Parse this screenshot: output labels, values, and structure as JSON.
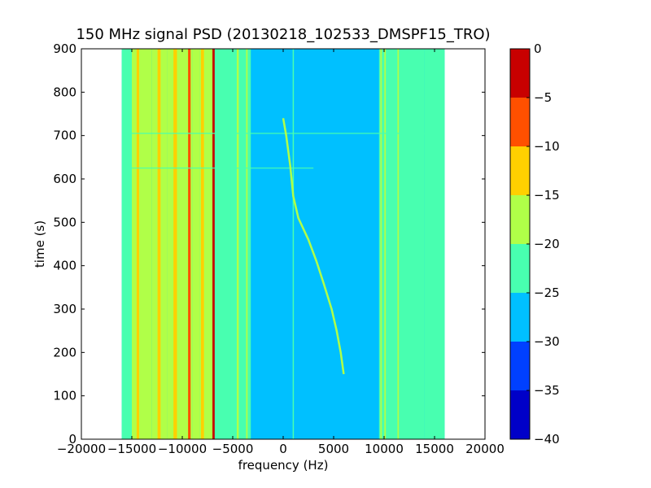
{
  "chart_data": {
    "type": "heatmap",
    "title": "150 MHz signal PSD (20130218_102533_DMSPF15_TRO)",
    "xlabel": "frequency (Hz)",
    "ylabel": "time (s)",
    "xlim": [
      -20000,
      20000
    ],
    "ylim": [
      0,
      900
    ],
    "xticks": [
      -20000,
      -15000,
      -10000,
      -5000,
      0,
      5000,
      10000,
      15000,
      20000
    ],
    "yticks": [
      0,
      100,
      200,
      300,
      400,
      500,
      600,
      700,
      800,
      900
    ],
    "data_extent_x": [
      -16000,
      16000
    ],
    "data_extent_y": [
      0,
      900
    ],
    "background_level": -27,
    "colorbar": {
      "levels": [
        -40,
        -35,
        -30,
        -25,
        -20,
        -15,
        -10,
        -5,
        0
      ],
      "tick_labels": [
        "-40",
        "-35",
        "-30",
        "-25",
        "-20",
        "-15",
        "-10",
        "-5",
        "0"
      ],
      "colors": [
        "#0000c8",
        "#0040ff",
        "#00c0ff",
        "#48ffb0",
        "#b0ff48",
        "#ffd000",
        "#ff5000",
        "#c80000"
      ]
    },
    "bands": [
      {
        "x": [
          -16000,
          -15000
        ],
        "level": -22
      },
      {
        "x": [
          -15000,
          -13000
        ],
        "level": -18
      },
      {
        "x": [
          -13000,
          -11500
        ],
        "level": -19
      },
      {
        "x": [
          -11500,
          -9000
        ],
        "level": -16
      },
      {
        "x": [
          -9000,
          -8300
        ],
        "level": -19
      },
      {
        "x": [
          -8300,
          -6800
        ],
        "level": -17
      },
      {
        "x": [
          -6800,
          -5200
        ],
        "level": -21
      },
      {
        "x": [
          -5200,
          -3200
        ],
        "level": -23
      },
      {
        "x": [
          -3200,
          9500
        ],
        "level": -27
      },
      {
        "x": [
          9500,
          11500
        ],
        "level": -23
      },
      {
        "x": [
          11500,
          14000
        ],
        "level": -25
      },
      {
        "x": [
          14000,
          16000
        ],
        "level": -22
      }
    ],
    "lines": [
      {
        "x": -14400,
        "level": -12,
        "width": 250
      },
      {
        "x": -12300,
        "level": -14,
        "width": 300
      },
      {
        "x": -10700,
        "level": -13,
        "width": 350
      },
      {
        "x": -9300,
        "level": -6,
        "width": 250
      },
      {
        "x": -8000,
        "level": -14,
        "width": 300
      },
      {
        "x": -6900,
        "level": -4,
        "width": 220
      },
      {
        "x": -4500,
        "level": -19,
        "width": 200
      },
      {
        "x": -3600,
        "level": -20,
        "width": 150
      },
      {
        "x": 1000,
        "level": -21,
        "width": 120
      },
      {
        "x": 9700,
        "level": -20,
        "width": 150
      },
      {
        "x": 10100,
        "level": -19,
        "width": 150
      },
      {
        "x": 11400,
        "level": -19,
        "width": 150
      },
      {
        "x": 14700,
        "level": -21,
        "width": 200
      }
    ],
    "hlines": [
      {
        "y": 705,
        "x": [
          -15000,
          15000
        ],
        "level": -21
      },
      {
        "y": 625,
        "x": [
          -15000,
          3000
        ],
        "level": -24
      }
    ],
    "trace": {
      "level": -17,
      "points": [
        [
          0,
          740
        ],
        [
          300,
          700
        ],
        [
          700,
          630
        ],
        [
          1000,
          560
        ],
        [
          1500,
          510
        ],
        [
          2500,
          460
        ],
        [
          3300,
          410
        ],
        [
          4000,
          360
        ],
        [
          4800,
          300
        ],
        [
          5300,
          250
        ],
        [
          5700,
          200
        ],
        [
          6000,
          150
        ]
      ]
    }
  }
}
